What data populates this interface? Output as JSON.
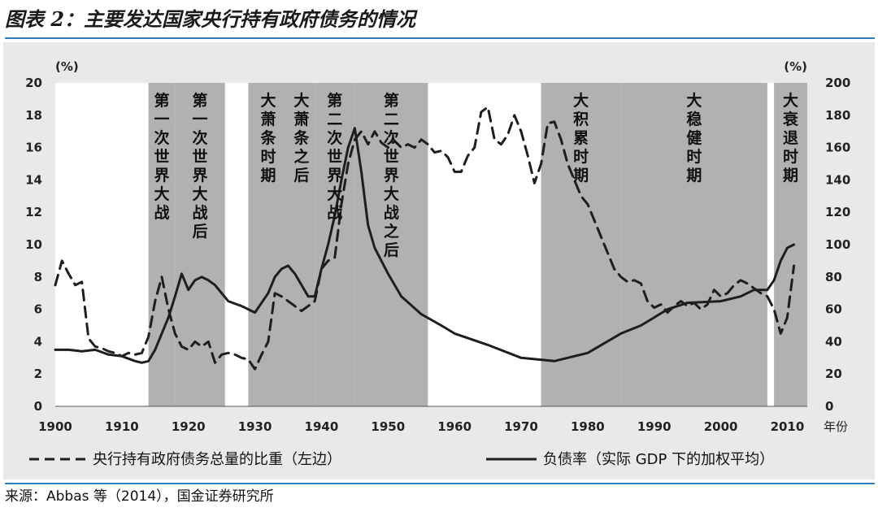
{
  "title": "图表 2：主要发达国家央行持有政府债务的情况",
  "source": "来源：Abbas 等（2014），国金证券研究所",
  "colors": {
    "background": "#e9e9e9",
    "shade": "#a8a8a8",
    "line": "#1e1e1e",
    "rule": "#2d7fb8"
  },
  "chart_data": {
    "type": "line",
    "xlabel": "年份",
    "left_unit": "(%)",
    "right_unit": "(%)",
    "xlim": [
      1900,
      2013
    ],
    "ylim_left": [
      0,
      20
    ],
    "ylim_right": [
      0,
      200
    ],
    "xticks": [
      "1900",
      "1910",
      "1920",
      "1930",
      "1940",
      "1950",
      "1960",
      "1970",
      "1980",
      "1990",
      "2000",
      "2010"
    ],
    "yticks_left": [
      "0",
      "2",
      "4",
      "6",
      "8",
      "10",
      "12",
      "14",
      "16",
      "18",
      "20"
    ],
    "yticks_right": [
      "0",
      "20",
      "40",
      "60",
      "80",
      "100",
      "120",
      "140",
      "160",
      "180",
      "200"
    ],
    "grid": false,
    "legend_position": "bottom",
    "periods": [
      {
        "label": "第一次世界大战",
        "start": 1914,
        "end": 1918
      },
      {
        "label": "第一次世界大战后",
        "start": 1918,
        "end": 1925.5
      },
      {
        "label": "大萧条时期",
        "start": 1929,
        "end": 1935
      },
      {
        "label": "大萧条之后",
        "start": 1935,
        "end": 1939
      },
      {
        "label": "第二次世界大战",
        "start": 1939,
        "end": 1945
      },
      {
        "label": "第二次世界大战之后",
        "start": 1945,
        "end": 1956
      },
      {
        "label": "大积累时期",
        "start": 1973,
        "end": 1985
      },
      {
        "label": "大稳健时期",
        "start": 1985,
        "end": 2007
      },
      {
        "label": "大衰退时期",
        "start": 2008,
        "end": 2013
      }
    ],
    "series": [
      {
        "name": "央行持有政府债务总量的比重（左边）",
        "axis": "left",
        "style": "dashed",
        "points": [
          [
            1900,
            7.5
          ],
          [
            1901,
            9.0
          ],
          [
            1902,
            8.2
          ],
          [
            1903,
            7.5
          ],
          [
            1904,
            7.7
          ],
          [
            1905,
            4.2
          ],
          [
            1906,
            3.7
          ],
          [
            1907,
            3.6
          ],
          [
            1908,
            3.4
          ],
          [
            1909,
            3.3
          ],
          [
            1910,
            3.1
          ],
          [
            1911,
            3.3
          ],
          [
            1912,
            3.2
          ],
          [
            1913,
            3.3
          ],
          [
            1914,
            4.3
          ],
          [
            1915,
            6.5
          ],
          [
            1916,
            8.0
          ],
          [
            1917,
            6.0
          ],
          [
            1918,
            4.5
          ],
          [
            1919,
            3.7
          ],
          [
            1920,
            3.5
          ],
          [
            1921,
            4.0
          ],
          [
            1922,
            3.7
          ],
          [
            1923,
            4.0
          ],
          [
            1924,
            2.7
          ],
          [
            1925,
            3.2
          ],
          [
            1926,
            3.3
          ],
          [
            1927,
            3.2
          ],
          [
            1928,
            3.0
          ],
          [
            1929,
            2.9
          ],
          [
            1930,
            2.3
          ],
          [
            1931,
            3.2
          ],
          [
            1932,
            4.0
          ],
          [
            1933,
            7.0
          ],
          [
            1934,
            6.8
          ],
          [
            1935,
            6.5
          ],
          [
            1936,
            6.2
          ],
          [
            1937,
            5.9
          ],
          [
            1938,
            6.2
          ],
          [
            1939,
            6.5
          ],
          [
            1940,
            8.5
          ],
          [
            1941,
            9.0
          ],
          [
            1942,
            9.2
          ],
          [
            1943,
            12.5
          ],
          [
            1944,
            15.0
          ],
          [
            1945,
            16.5
          ],
          [
            1946,
            17.0
          ],
          [
            1947,
            16.2
          ],
          [
            1948,
            17.0
          ],
          [
            1949,
            16.3
          ],
          [
            1950,
            16.0
          ],
          [
            1951,
            16.4
          ],
          [
            1952,
            16.0
          ],
          [
            1953,
            16.2
          ],
          [
            1954,
            16.0
          ],
          [
            1955,
            16.5
          ],
          [
            1956,
            16.2
          ],
          [
            1957,
            15.7
          ],
          [
            1958,
            15.8
          ],
          [
            1959,
            15.4
          ],
          [
            1960,
            14.5
          ],
          [
            1961,
            14.5
          ],
          [
            1962,
            15.5
          ],
          [
            1963,
            16.0
          ],
          [
            1964,
            18.2
          ],
          [
            1965,
            18.5
          ],
          [
            1966,
            16.5
          ],
          [
            1967,
            16.2
          ],
          [
            1968,
            16.8
          ],
          [
            1969,
            18.0
          ],
          [
            1970,
            17.0
          ],
          [
            1971,
            15.5
          ],
          [
            1972,
            13.8
          ],
          [
            1973,
            15.0
          ],
          [
            1974,
            17.5
          ],
          [
            1975,
            17.6
          ],
          [
            1976,
            16.5
          ],
          [
            1977,
            15.0
          ],
          [
            1978,
            14.0
          ],
          [
            1979,
            13.0
          ],
          [
            1980,
            12.5
          ],
          [
            1981,
            11.5
          ],
          [
            1982,
            10.5
          ],
          [
            1983,
            9.5
          ],
          [
            1984,
            8.5
          ],
          [
            1985,
            8.0
          ],
          [
            1986,
            7.7
          ],
          [
            1987,
            7.8
          ],
          [
            1988,
            7.6
          ],
          [
            1989,
            6.5
          ],
          [
            1990,
            6.1
          ],
          [
            1991,
            6.3
          ],
          [
            1992,
            5.8
          ],
          [
            1993,
            6.2
          ],
          [
            1994,
            6.5
          ],
          [
            1995,
            6.2
          ],
          [
            1996,
            6.4
          ],
          [
            1997,
            6.0
          ],
          [
            1998,
            6.3
          ],
          [
            1999,
            7.2
          ],
          [
            2000,
            6.8
          ],
          [
            2001,
            7.0
          ],
          [
            2002,
            7.5
          ],
          [
            2003,
            7.8
          ],
          [
            2004,
            7.6
          ],
          [
            2005,
            7.3
          ],
          [
            2006,
            7.0
          ],
          [
            2007,
            6.8
          ],
          [
            2008,
            6.0
          ],
          [
            2009,
            4.5
          ],
          [
            2010,
            5.5
          ],
          [
            2011,
            8.7
          ]
        ]
      },
      {
        "name": "负债率（实际 GDP 下的加权平均）",
        "axis": "right",
        "style": "solid",
        "points": [
          [
            1900,
            35
          ],
          [
            1902,
            35
          ],
          [
            1904,
            34
          ],
          [
            1906,
            35
          ],
          [
            1908,
            32
          ],
          [
            1910,
            31
          ],
          [
            1912,
            28
          ],
          [
            1913,
            27
          ],
          [
            1914,
            28
          ],
          [
            1915,
            35
          ],
          [
            1916,
            45
          ],
          [
            1917,
            55
          ],
          [
            1918,
            68
          ],
          [
            1919,
            82
          ],
          [
            1920,
            72
          ],
          [
            1921,
            78
          ],
          [
            1922,
            80
          ],
          [
            1923,
            78
          ],
          [
            1924,
            75
          ],
          [
            1925,
            70
          ],
          [
            1926,
            65
          ],
          [
            1928,
            62
          ],
          [
            1930,
            58
          ],
          [
            1932,
            70
          ],
          [
            1933,
            80
          ],
          [
            1934,
            85
          ],
          [
            1935,
            87
          ],
          [
            1936,
            82
          ],
          [
            1937,
            75
          ],
          [
            1938,
            68
          ],
          [
            1939,
            68
          ],
          [
            1940,
            85
          ],
          [
            1941,
            100
          ],
          [
            1942,
            118
          ],
          [
            1943,
            140
          ],
          [
            1944,
            160
          ],
          [
            1945,
            172
          ],
          [
            1946,
            145
          ],
          [
            1947,
            112
          ],
          [
            1948,
            98
          ],
          [
            1950,
            82
          ],
          [
            1952,
            68
          ],
          [
            1955,
            57
          ],
          [
            1958,
            50
          ],
          [
            1960,
            45
          ],
          [
            1965,
            38
          ],
          [
            1970,
            30
          ],
          [
            1975,
            28
          ],
          [
            1980,
            33
          ],
          [
            1985,
            45
          ],
          [
            1988,
            50
          ],
          [
            1990,
            55
          ],
          [
            1992,
            60
          ],
          [
            1995,
            64
          ],
          [
            2000,
            65
          ],
          [
            2003,
            68
          ],
          [
            2005,
            72
          ],
          [
            2007,
            72
          ],
          [
            2008,
            78
          ],
          [
            2009,
            90
          ],
          [
            2010,
            98
          ],
          [
            2011,
            100
          ]
        ]
      }
    ]
  }
}
